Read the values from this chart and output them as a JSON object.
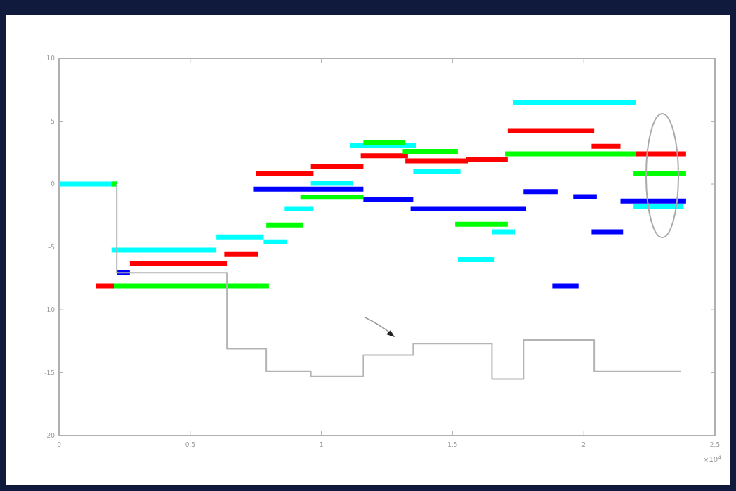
{
  "chart_data": {
    "type": "line",
    "xlim": [
      0,
      2.5
    ],
    "ylim": [
      -20,
      10
    ],
    "xticks": [
      0,
      0.5,
      1,
      1.5,
      2,
      2.5
    ],
    "yticks": [
      -20,
      -15,
      -10,
      -5,
      0,
      5,
      10
    ],
    "line_style": "solid",
    "annotations": [
      "×10$^{4}$"
    ],
    "series": [
      {
        "color": "#00ffff",
        "x": [
          0,
          0.22,
          null,
          0.2,
          0.6,
          null,
          0.6,
          0.78,
          null,
          0.78,
          0.87,
          null,
          0.86,
          0.97,
          null,
          0.96,
          1.12,
          null,
          1.11,
          1.36,
          null,
          1.35,
          1.53,
          null,
          1.52,
          1.66,
          null,
          1.65,
          1.74,
          null,
          1.73,
          2.2,
          null,
          2.19,
          2.38
        ],
        "values": [
          0,
          0,
          null,
          -5.25,
          -5.25,
          null,
          -4.2,
          -4.2,
          null,
          -4.6,
          -4.6,
          null,
          -1.95,
          -1.95,
          null,
          0.05,
          0.05,
          null,
          3.05,
          3.05,
          null,
          1.0,
          1.0,
          null,
          -6.0,
          -6.0,
          null,
          -3.8,
          -3.8,
          null,
          6.45,
          6.45,
          null,
          -1.8,
          -1.8
        ]
      },
      {
        "color": "#ff0000",
        "x": [
          0.14,
          0.21,
          null,
          0.27,
          0.64,
          null,
          0.63,
          0.76,
          null,
          0.75,
          0.97,
          null,
          0.96,
          1.16,
          null,
          1.15,
          1.33,
          null,
          1.32,
          1.56,
          null,
          1.55,
          1.71,
          null,
          1.71,
          2.04,
          null,
          2.03,
          2.14,
          null,
          2.2,
          2.39
        ],
        "values": [
          -8.1,
          -8.1,
          null,
          -6.3,
          -6.3,
          null,
          -5.6,
          -5.6,
          null,
          0.85,
          0.85,
          null,
          1.4,
          1.4,
          null,
          2.25,
          2.25,
          null,
          1.85,
          1.85,
          null,
          1.95,
          1.95,
          null,
          4.25,
          4.25,
          null,
          3.0,
          3.0,
          null,
          2.4,
          2.4
        ]
      },
      {
        "color": "#00ff00",
        "x": [
          0.2,
          0.22,
          null,
          0.21,
          0.8,
          null,
          0.79,
          0.93,
          null,
          0.92,
          1.16,
          null,
          1.16,
          1.32,
          null,
          1.31,
          1.52,
          null,
          1.51,
          1.71,
          null,
          1.7,
          2.2,
          null,
          2.19,
          2.39
        ],
        "values": [
          0,
          0,
          null,
          -8.1,
          -8.1,
          null,
          -3.25,
          -3.25,
          null,
          -1.05,
          -1.05,
          null,
          3.3,
          3.3,
          null,
          2.6,
          2.6,
          null,
          -3.2,
          -3.2,
          null,
          2.4,
          2.4,
          null,
          0.85,
          0.85
        ]
      },
      {
        "color": "#0000ff",
        "x": [
          0.22,
          0.27,
          null,
          0.74,
          1.16,
          null,
          1.16,
          1.35,
          null,
          1.34,
          1.78,
          null,
          1.77,
          1.9,
          null,
          1.88,
          1.98,
          null,
          1.96,
          2.05,
          null,
          2.03,
          2.15,
          null,
          2.14,
          2.39
        ],
        "values": [
          -7.05,
          -7.05,
          null,
          -0.4,
          -0.4,
          null,
          -1.2,
          -1.2,
          null,
          -1.95,
          -1.95,
          null,
          -0.6,
          -0.6,
          null,
          -8.1,
          -8.1,
          null,
          -1.0,
          -1.0,
          null,
          -3.8,
          -3.8,
          null,
          -1.35,
          -1.35
        ]
      },
      {
        "color": "#b4b4b4",
        "x": [
          0.22,
          0.22,
          0.64,
          0.64,
          0.79,
          0.79,
          0.96,
          0.96,
          1.16,
          1.16,
          1.35,
          1.35,
          1.65,
          1.65,
          1.77,
          1.77,
          2.04,
          2.04,
          2.37
        ],
        "values": [
          0,
          -7.05,
          -7.05,
          -13.1,
          -13.1,
          -14.9,
          -14.9,
          -15.3,
          -15.3,
          -13.6,
          -13.6,
          -12.7,
          -12.7,
          -15.5,
          -15.5,
          -12.4,
          -12.4,
          -14.9,
          -14.9
        ]
      }
    ]
  }
}
